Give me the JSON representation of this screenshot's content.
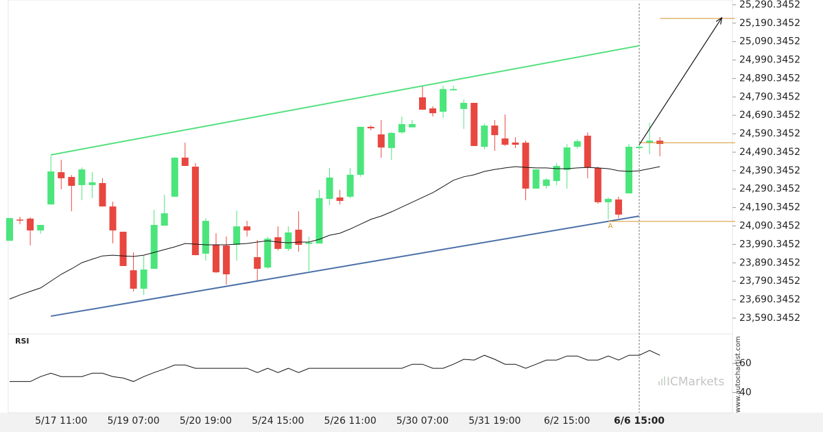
{
  "chart_data": {
    "type": "candlestick",
    "categories": [
      null,
      null,
      null,
      null,
      null,
      "5/17 11:00",
      null,
      null,
      null,
      null,
      null,
      null,
      "5/19 07:00",
      null,
      null,
      null,
      null,
      null,
      null,
      "5/20 19:00",
      null,
      null,
      null,
      null,
      null,
      null,
      "5/24 15:00",
      null,
      null,
      null,
      null,
      null,
      null,
      "5/26 11:00",
      null,
      null,
      null,
      null,
      null,
      null,
      "5/30 07:00",
      null,
      null,
      null,
      null,
      null,
      null,
      "5/31 19:00",
      null,
      null,
      null,
      null,
      null,
      null,
      "6/2 15:00",
      null,
      null,
      null,
      null,
      null,
      null,
      "6/6 15:00",
      null,
      null
    ],
    "current_index": 61,
    "open": [
      24010,
      24125,
      24130,
      24066,
      24207,
      24382,
      24356,
      24312,
      24312,
      24323,
      24196,
      24059,
      23850,
      23750,
      23858,
      24092,
      24249,
      24461,
      24412,
      23940,
      23988,
      23984,
      23988,
      24088,
      23921,
      23865,
      24029,
      23966,
      24070,
      23993,
      23995,
      24237,
      24245,
      24249,
      24368,
      24628,
      24587,
      24513,
      24598,
      24625,
      24788,
      24728,
      24710,
      24826,
      24725,
      24758,
      24520,
      24635,
      24565,
      24543,
      24542,
      24293,
      24308,
      24334,
      24394,
      24520,
      24580,
      24405,
      24219,
      24234,
      24267,
      24513,
      24542,
      24553
    ],
    "high": [
      24133,
      24140,
      24137,
      24096,
      24472,
      24449,
      24367,
      24408,
      24382,
      24349,
      24222,
      24059,
      23947,
      23929,
      24178,
      24260,
      24461,
      24542,
      24431,
      24133,
      24051,
      24033,
      24174,
      24118,
      24014,
      24033,
      24088,
      24088,
      24170,
      24033,
      24286,
      24405,
      24286,
      24405,
      24628,
      24636,
      24665,
      24598,
      24684,
      24665,
      24851,
      24740,
      24851,
      24851,
      24777,
      24758,
      24646,
      24665,
      24695,
      24572,
      24553,
      24397,
      24349,
      24431,
      24535,
      24561,
      24598,
      24412,
      24245,
      24249,
      24535,
      24528,
      24650,
      24572
    ],
    "low": [
      24010,
      24100,
      23985,
      24048,
      24207,
      24289,
      24170,
      24230,
      24241,
      24196,
      23996,
      23873,
      23735,
      23716,
      23858,
      24092,
      24249,
      24416,
      23932,
      23902,
      23835,
      23772,
      23902,
      24033,
      23791,
      23858,
      23958,
      23955,
      23951,
      23847,
      23995,
      24204,
      24207,
      24241,
      24357,
      24609,
      24460,
      24449,
      24591,
      24628,
      24721,
      24684,
      24676,
      24825,
      24617,
      24524,
      24505,
      24498,
      24524,
      24513,
      24230,
      24293,
      24293,
      24312,
      24293,
      24509,
      24349,
      24211,
      24126,
      24133,
      24267,
      24509,
      24479,
      24468
    ],
    "close": [
      24133,
      24120,
      24066,
      24096,
      24386,
      24349,
      24308,
      24397,
      24327,
      24196,
      24066,
      23873,
      23750,
      23854,
      24096,
      24159,
      24461,
      24416,
      23932,
      24118,
      23839,
      23828,
      24088,
      24066,
      23858,
      24021,
      23966,
      24055,
      23988,
      24000,
      24241,
      24353,
      24226,
      24368,
      24628,
      24620,
      24516,
      24595,
      24643,
      24643,
      24721,
      24702,
      24833,
      24833,
      24758,
      24524,
      24635,
      24583,
      24531,
      24531,
      24293,
      24397,
      24342,
      24416,
      24516,
      24550,
      24408,
      24219,
      24237,
      24152,
      24520,
      24520,
      24553,
      24535
    ],
    "colors": {
      "up": "#4be57c",
      "down": "#e8473f"
    },
    "ma": {
      "color": "#111111",
      "values": [
        23694,
        23716,
        23735,
        23754,
        23791,
        23828,
        23858,
        23891,
        23910,
        23928,
        23932,
        23928,
        23925,
        23932,
        23947,
        23962,
        23977,
        23995,
        23992,
        23988,
        23988,
        23988,
        23992,
        23995,
        24003,
        24010,
        24003,
        23999,
        24003,
        24003,
        24018,
        24040,
        24051,
        24074,
        24100,
        24126,
        24144,
        24167,
        24193,
        24219,
        24245,
        24271,
        24304,
        24338,
        24357,
        24368,
        24386,
        24397,
        24405,
        24412,
        24408,
        24405,
        24405,
        24401,
        24401,
        24405,
        24408,
        24405,
        24401,
        24390,
        24386,
        24390,
        24401,
        24412
      ]
    },
    "ylim": [
      23512,
      25316
    ],
    "yticks": [
      {
        "value": 25290.3452,
        "label": "25,290.3452"
      },
      {
        "value": 25190.3452,
        "label": "25,190.3452"
      },
      {
        "value": 25090.3452,
        "label": "25,090.3452"
      },
      {
        "value": 24990.3452,
        "label": "24,990.3452"
      },
      {
        "value": 24890.3452,
        "label": "24,890.3452"
      },
      {
        "value": 24790.3452,
        "label": "24,790.3452"
      },
      {
        "value": 24690.3452,
        "label": "24,690.3452"
      },
      {
        "value": 24590.3452,
        "label": "24,590.3452"
      },
      {
        "value": 24490.3452,
        "label": "24,490.3452"
      },
      {
        "value": 24390.3452,
        "label": "24,390.3452"
      },
      {
        "value": 24290.3452,
        "label": "24,290.3452"
      },
      {
        "value": 24190.3452,
        "label": "24,190.3452"
      },
      {
        "value": 24090.3452,
        "label": "24,090.3452"
      },
      {
        "value": 23990.3452,
        "label": "23,990.3452"
      },
      {
        "value": 23890.3452,
        "label": "23,890.3452"
      },
      {
        "value": 23790.3452,
        "label": "23,790.3452"
      },
      {
        "value": 23690.3452,
        "label": "23,690.3452"
      },
      {
        "value": 23590.3452,
        "label": "23,590.3452"
      }
    ],
    "trend_lines": [
      {
        "x": [
          4,
          61
        ],
        "y": [
          24476,
          25068
        ],
        "color": "#52e07d"
      },
      {
        "x": [
          4,
          61
        ],
        "y": [
          23601,
          24144
        ],
        "color": "#4a6fa8"
      }
    ],
    "levels": [
      {
        "x": [
          63,
          70.3
        ],
        "y": 25216,
        "color": "#d4922a"
      },
      {
        "x": [
          61,
          70.3
        ],
        "y": 24542,
        "color": "#d4922a"
      },
      {
        "x": [
          58,
          70.3
        ],
        "y": 24115,
        "color": "#d4922a"
      }
    ],
    "arrow": {
      "x": [
        61,
        69
      ],
      "y": [
        24531,
        25220
      ],
      "color": "#111111"
    },
    "annotations": [
      {
        "text": "A",
        "x": 58.2,
        "y": 24090,
        "color": "#d4922a"
      }
    ],
    "rsi": {
      "label": "RSI",
      "color": "#111111",
      "ylim": [
        26,
        79
      ],
      "yticks": [
        40,
        60
      ],
      "values": [
        47.6,
        47.6,
        47.6,
        51,
        53.3,
        51,
        51,
        51,
        53.3,
        53.3,
        51,
        50,
        47.6,
        51,
        53.8,
        56.2,
        59,
        59,
        56.7,
        56.7,
        56.7,
        56.7,
        56.7,
        56.7,
        53.8,
        56.7,
        53.8,
        56.7,
        53.8,
        56.7,
        56.7,
        56.7,
        56.7,
        56.7,
        56.7,
        56.7,
        56.7,
        56.7,
        56.7,
        59.5,
        59.5,
        56.7,
        56.7,
        59.5,
        62.9,
        62.4,
        65.7,
        62.9,
        59.5,
        59.5,
        56.7,
        59.5,
        62.4,
        62.4,
        65.2,
        65.2,
        62.4,
        62.4,
        65.2,
        62.4,
        65.7,
        65.7,
        69,
        65.7
      ]
    },
    "watermark": "ICMarkets",
    "source": "www.autochartist.com"
  }
}
